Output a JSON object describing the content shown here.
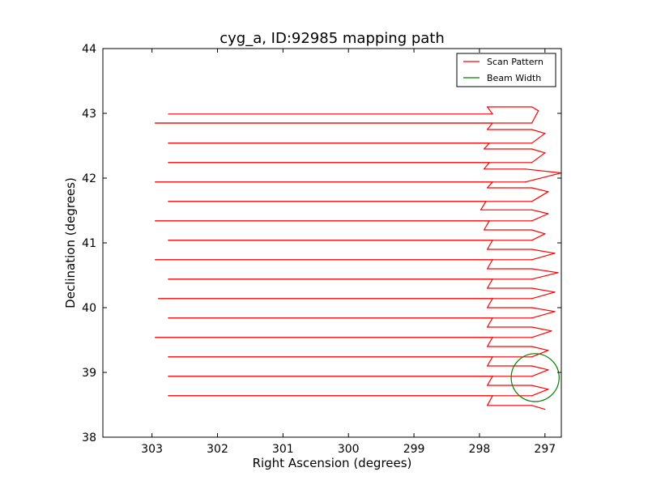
{
  "chart_data": {
    "type": "line",
    "title": "cyg_a, ID:92985 mapping path",
    "xlabel": "Right Ascension (degrees)",
    "ylabel": "Declination (degrees)",
    "xlim": [
      303.75,
      296.75
    ],
    "ylim": [
      38,
      44
    ],
    "x_ticks": [
      303,
      302,
      301,
      300,
      299,
      298,
      297
    ],
    "y_ticks": [
      38,
      39,
      40,
      41,
      42,
      43,
      44
    ],
    "grid": false,
    "legend": {
      "placement": "top-right",
      "entries": [
        {
          "label": "Scan Pattern",
          "color": "#ff0000"
        },
        {
          "label": "Beam Width",
          "color": "#008000"
        }
      ]
    },
    "series": [
      {
        "name": "Scan Pattern",
        "color": "#ff0000",
        "rows": [
          {
            "dec": 42.99,
            "ra_east": 302.75,
            "ra_west": 297.2,
            "ra_turn": 297.1,
            "kink_ra": 297.8,
            "kink_dec": 43.1
          },
          {
            "dec": 42.85,
            "ra_east": 302.95,
            "ra_west": 297.2,
            "ra_turn": 297.0,
            "kink_ra": 297.8,
            "kink_dec": 42.75
          },
          {
            "dec": 42.54,
            "ra_east": 302.75,
            "ra_west": 297.2,
            "ra_turn": 297.0,
            "kink_ra": 297.85,
            "kink_dec": 42.45
          },
          {
            "dec": 42.24,
            "ra_east": 302.75,
            "ra_west": 297.3,
            "ra_turn": 296.75,
            "kink_ra": 297.85,
            "kink_dec": 42.14
          },
          {
            "dec": 41.94,
            "ra_east": 302.95,
            "ra_west": 297.2,
            "ra_turn": 296.95,
            "kink_ra": 297.8,
            "kink_dec": 41.85
          },
          {
            "dec": 41.64,
            "ra_east": 302.75,
            "ra_west": 297.2,
            "ra_turn": 296.95,
            "kink_ra": 297.9,
            "kink_dec": 41.51
          },
          {
            "dec": 41.34,
            "ra_east": 302.95,
            "ra_west": 297.2,
            "ra_turn": 297.0,
            "kink_ra": 297.85,
            "kink_dec": 41.2
          },
          {
            "dec": 41.04,
            "ra_east": 302.75,
            "ra_west": 297.2,
            "ra_turn": 296.85,
            "kink_ra": 297.8,
            "kink_dec": 40.9
          },
          {
            "dec": 40.74,
            "ra_east": 302.95,
            "ra_west": 297.2,
            "ra_turn": 296.8,
            "kink_ra": 297.8,
            "kink_dec": 40.6
          },
          {
            "dec": 40.44,
            "ra_east": 302.75,
            "ra_west": 297.2,
            "ra_turn": 296.85,
            "kink_ra": 297.8,
            "kink_dec": 40.3
          },
          {
            "dec": 40.14,
            "ra_east": 302.9,
            "ra_west": 297.2,
            "ra_turn": 296.85,
            "kink_ra": 297.8,
            "kink_dec": 40.0
          },
          {
            "dec": 39.84,
            "ra_east": 302.75,
            "ra_west": 297.2,
            "ra_turn": 296.9,
            "kink_ra": 297.8,
            "kink_dec": 39.7
          },
          {
            "dec": 39.54,
            "ra_east": 302.95,
            "ra_west": 297.2,
            "ra_turn": 296.95,
            "kink_ra": 297.8,
            "kink_dec": 39.4
          },
          {
            "dec": 39.24,
            "ra_east": 302.75,
            "ra_west": 297.2,
            "ra_turn": 296.95,
            "kink_ra": 297.8,
            "kink_dec": 39.1
          },
          {
            "dec": 38.94,
            "ra_east": 302.75,
            "ra_west": 297.2,
            "ra_turn": 296.95,
            "kink_ra": 297.8,
            "kink_dec": 38.8
          },
          {
            "dec": 38.64,
            "ra_east": 302.75,
            "ra_west": 297.2,
            "ra_turn": 297.0,
            "kink_ra": 297.8,
            "kink_dec": 38.49
          }
        ],
        "end": {
          "ra": 297.0,
          "dec": 38.49
        }
      },
      {
        "name": "Beam Width",
        "color": "#008000",
        "shape": "circle",
        "center_ra": 297.15,
        "center_dec": 38.92,
        "radius_deg": 0.37
      }
    ]
  }
}
